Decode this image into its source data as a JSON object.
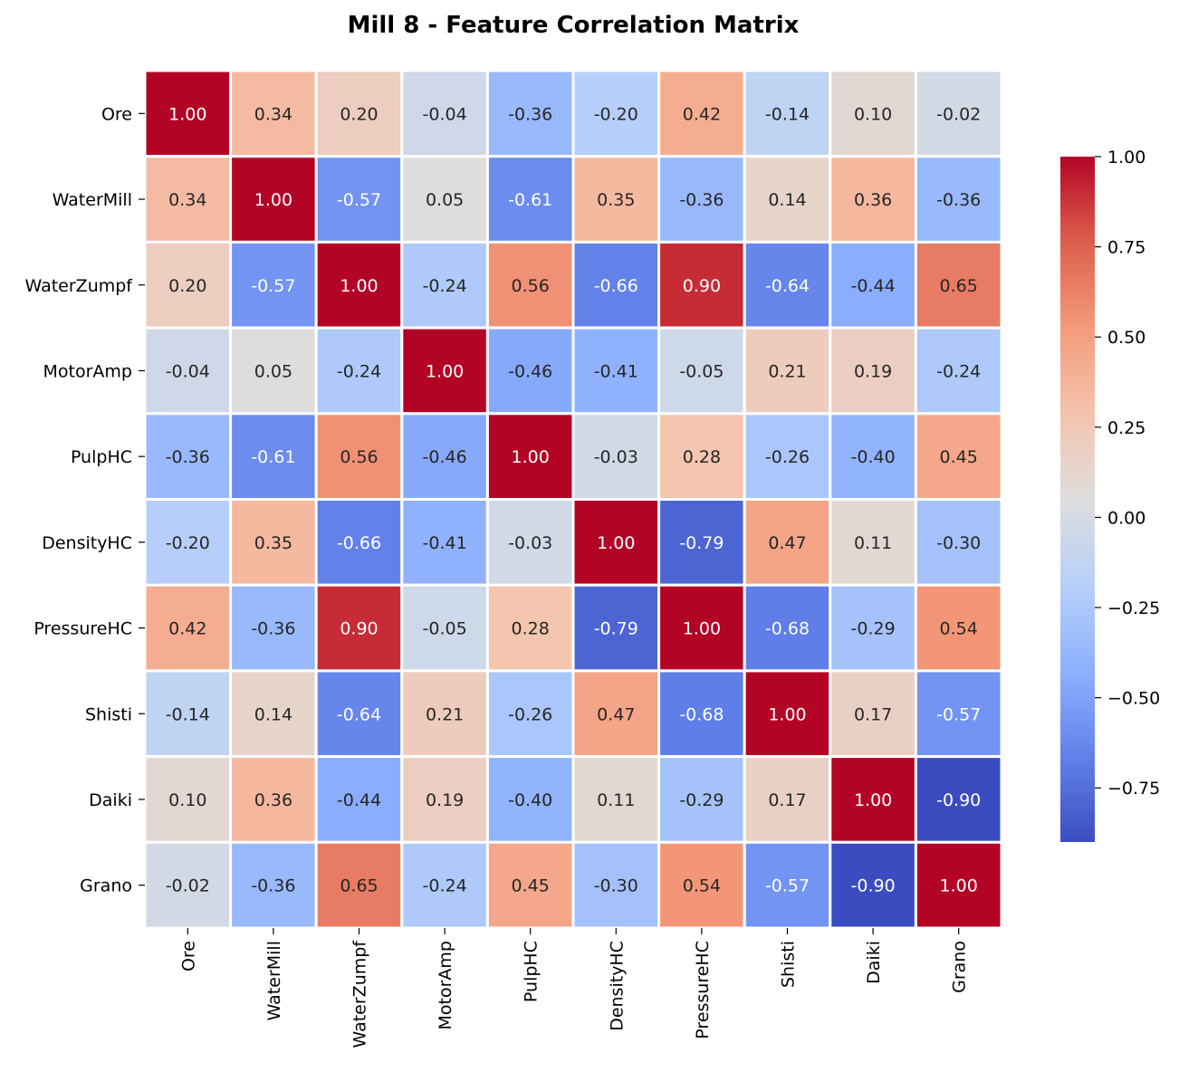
{
  "chart_data": {
    "type": "heatmap",
    "title": "Mill 8 - Feature Correlation Matrix",
    "xlabel": "",
    "ylabel": "",
    "colormap": "coolwarm",
    "vmin": -0.9,
    "vmax": 1.0,
    "value_format": "2 decimals",
    "grid": false,
    "legend": "colorbar-right",
    "labels": [
      "Ore",
      "WaterMill",
      "WaterZumpf",
      "MotorAmp",
      "PulpHC",
      "DensityHC",
      "PressureHC",
      "Shisti",
      "Daiki",
      "Grano"
    ],
    "matrix": [
      [
        1.0,
        0.34,
        0.2,
        -0.04,
        -0.36,
        -0.2,
        0.42,
        -0.14,
        0.1,
        -0.02
      ],
      [
        0.34,
        1.0,
        -0.57,
        0.05,
        -0.61,
        0.35,
        -0.36,
        0.14,
        0.36,
        -0.36
      ],
      [
        0.2,
        -0.57,
        1.0,
        -0.24,
        0.56,
        -0.66,
        0.9,
        -0.64,
        -0.44,
        0.65
      ],
      [
        -0.04,
        0.05,
        -0.24,
        1.0,
        -0.46,
        -0.41,
        -0.05,
        0.21,
        0.19,
        -0.24
      ],
      [
        -0.36,
        -0.61,
        0.56,
        -0.46,
        1.0,
        -0.03,
        0.28,
        -0.26,
        -0.4,
        0.45
      ],
      [
        -0.2,
        0.35,
        -0.66,
        -0.41,
        -0.03,
        1.0,
        -0.79,
        0.47,
        0.11,
        -0.3
      ],
      [
        0.42,
        -0.36,
        0.9,
        -0.05,
        0.28,
        -0.79,
        1.0,
        -0.68,
        -0.29,
        0.54
      ],
      [
        -0.14,
        0.14,
        -0.64,
        0.21,
        -0.26,
        0.47,
        -0.68,
        1.0,
        0.17,
        -0.57
      ],
      [
        0.1,
        0.36,
        -0.44,
        0.19,
        -0.4,
        0.11,
        -0.29,
        0.17,
        1.0,
        -0.9
      ],
      [
        -0.02,
        -0.36,
        0.65,
        -0.24,
        0.45,
        -0.3,
        0.54,
        -0.57,
        -0.9,
        1.0
      ]
    ],
    "colorbar": {
      "ticks": [
        1.0,
        0.75,
        0.5,
        0.25,
        0.0,
        -0.25,
        -0.5,
        -0.75
      ],
      "tick_labels": [
        "1.00",
        "0.75",
        "0.50",
        "0.25",
        "0.00",
        "−0.25",
        "−0.50",
        "−0.75"
      ]
    }
  }
}
